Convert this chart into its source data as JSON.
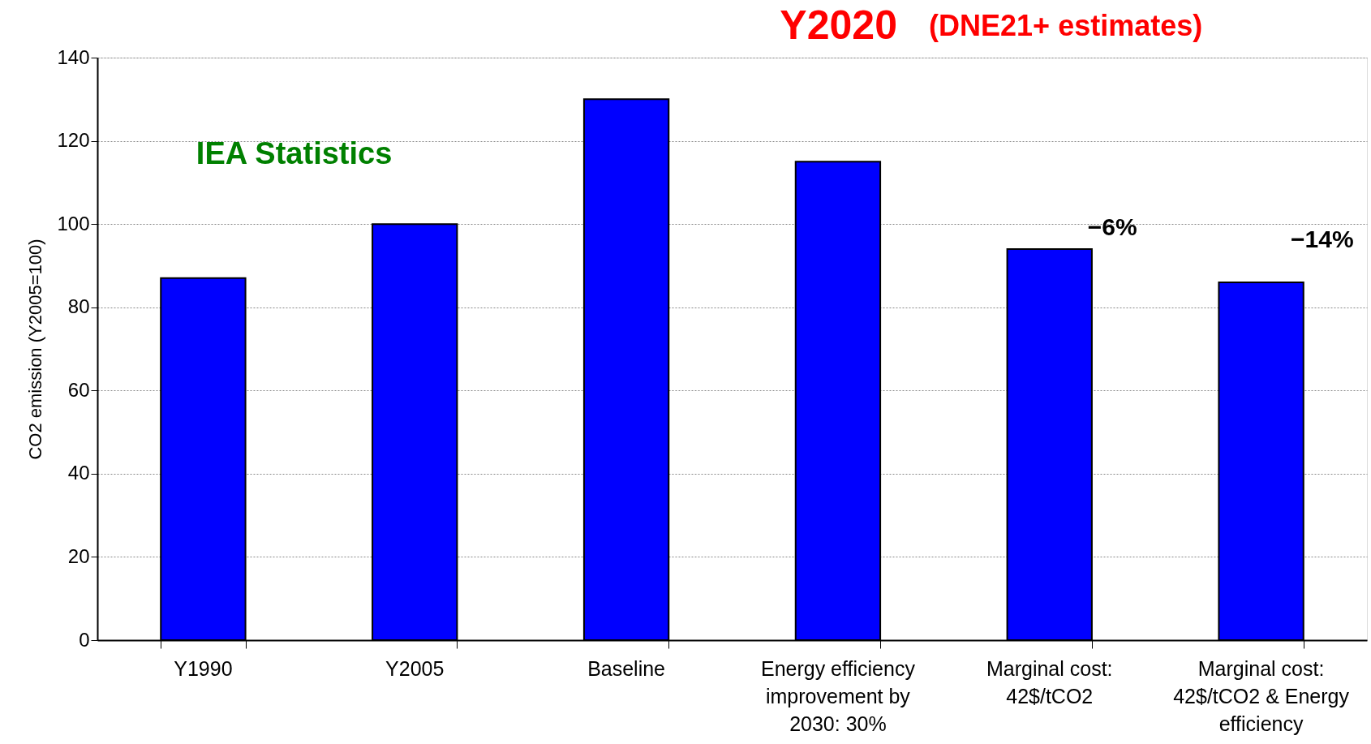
{
  "chart_data": {
    "type": "bar",
    "ylabel": "CO2 emission (Y2005=100)",
    "categories": [
      "Y1990",
      "Y2005",
      "Baseline",
      "Energy efficiency improvement by 2030: 30%",
      "Marginal cost: 42$/tCO2",
      "Marginal cost: 42$/tCO2 & Energy efficiency"
    ],
    "values": [
      87,
      100,
      130,
      115,
      94,
      86
    ],
    "color": "#0000ff",
    "ylim": [
      0,
      140
    ],
    "yticks": [
      0,
      20,
      40,
      60,
      80,
      100,
      120,
      140
    ],
    "grid": "y",
    "annotations": [
      "IEA Statistics",
      "Y2020",
      "(DNE21+ estimates)",
      "−6%",
      "−14%"
    ]
  }
}
